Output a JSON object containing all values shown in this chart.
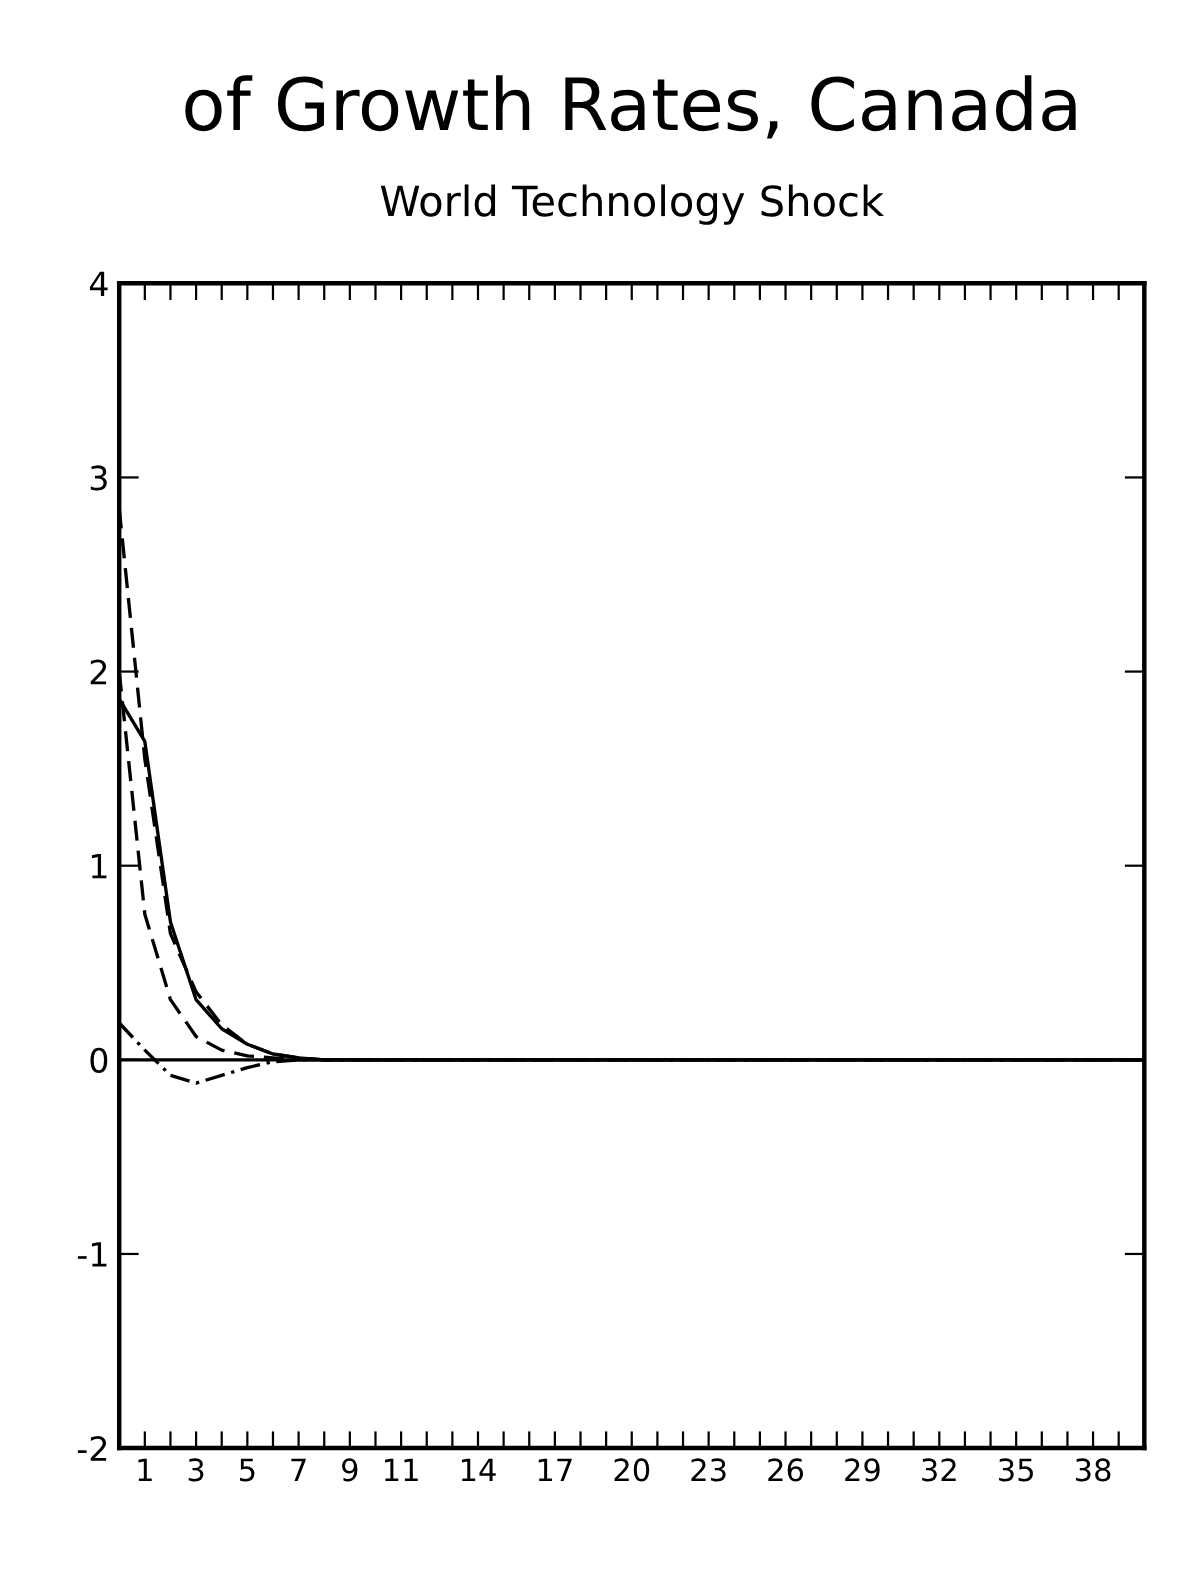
{
  "chart_data": {
    "type": "line",
    "title": "of Growth Rates, Canada",
    "subtitle": "World Technology Shock",
    "x": [
      0,
      1,
      2,
      3,
      4,
      5,
      6,
      7,
      8,
      10,
      15,
      20,
      25,
      30,
      35,
      40
    ],
    "series": [
      {
        "color": "#000000",
        "line_style": "solid",
        "values": [
          1.86,
          1.64,
          0.71,
          0.31,
          0.16,
          0.08,
          0.03,
          0.01,
          0,
          0,
          0,
          0,
          0,
          0,
          0,
          0
        ]
      },
      {
        "color": "#000000",
        "line_style": "dashed",
        "values": [
          2.84,
          1.55,
          0.65,
          0.35,
          0.18,
          0.08,
          0.03,
          0.01,
          0,
          0,
          0,
          0,
          0,
          0,
          0,
          0
        ]
      },
      {
        "color": "#000000",
        "line_style": "dashed",
        "values": [
          2.0,
          0.75,
          0.31,
          0.12,
          0.05,
          0.02,
          0.01,
          0,
          0,
          0,
          0,
          0,
          0,
          0,
          0,
          0
        ]
      },
      {
        "color": "#000000",
        "line_style": "dotted",
        "values": [
          0.19,
          0.05,
          -0.08,
          -0.12,
          -0.08,
          -0.04,
          -0.01,
          0,
          0,
          0,
          0,
          0,
          0,
          0,
          0,
          0
        ]
      }
    ],
    "xlim": [
      0,
      40
    ],
    "xticks": [
      {
        "value": 0,
        "label": null
      },
      1,
      {
        "value": 2,
        "label": null
      },
      3,
      {
        "value": 4,
        "label": null
      },
      5,
      {
        "value": 6,
        "label": null
      },
      7,
      {
        "value": 8,
        "label": null
      },
      9,
      {
        "value": 10,
        "label": null
      },
      11,
      {
        "value": 12,
        "label": null
      },
      {
        "value": 13,
        "label": null
      },
      14,
      {
        "value": 15,
        "label": null
      },
      {
        "value": 16,
        "label": null
      },
      17,
      {
        "value": 18,
        "label": null
      },
      {
        "value": 19,
        "label": null
      },
      20,
      {
        "value": 21,
        "label": null
      },
      {
        "value": 22,
        "label": null
      },
      23,
      {
        "value": 24,
        "label": null
      },
      {
        "value": 25,
        "label": null
      },
      26,
      {
        "value": 27,
        "label": null
      },
      {
        "value": 28,
        "label": null
      },
      29,
      {
        "value": 30,
        "label": null
      },
      {
        "value": 31,
        "label": null
      },
      32,
      {
        "value": 33,
        "label": null
      },
      {
        "value": 34,
        "label": null
      },
      35,
      {
        "value": 36,
        "label": null
      },
      {
        "value": 37,
        "label": null
      },
      38,
      {
        "value": 39,
        "label": null
      }
    ],
    "ylim": [
      -2,
      4
    ],
    "yticks": [
      -2,
      -1,
      0,
      1,
      2,
      3,
      4
    ],
    "ref_lines": [
      {
        "axis": "y",
        "value": 0,
        "color": "#000000"
      }
    ],
    "grid": false,
    "legend": false
  }
}
